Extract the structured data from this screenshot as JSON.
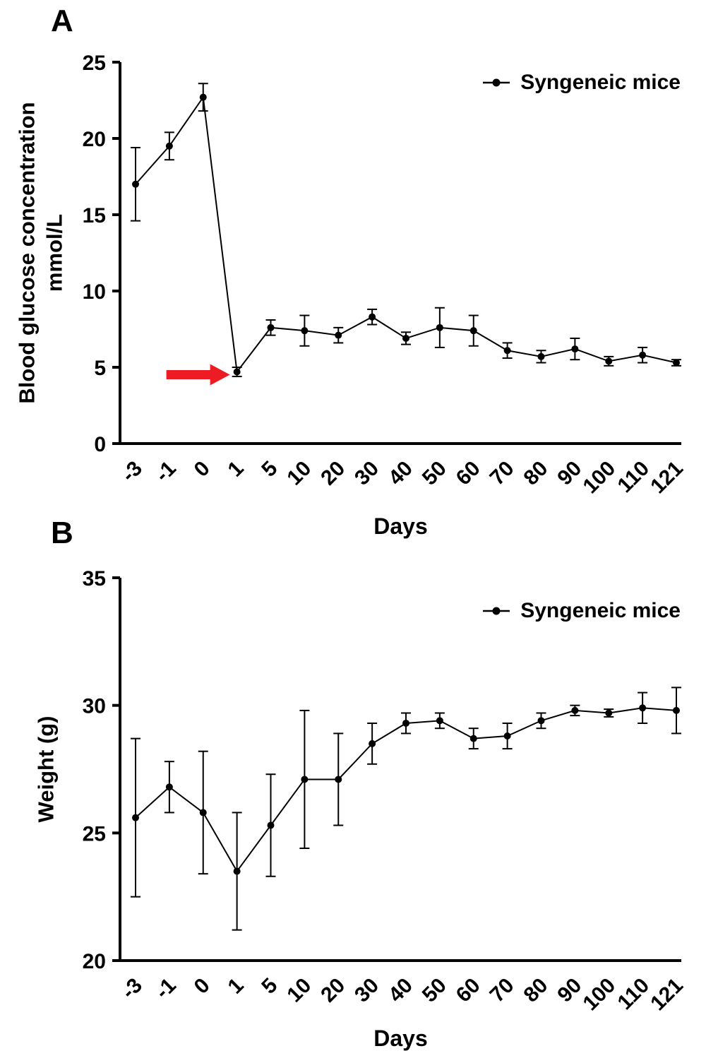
{
  "figure": {
    "panels": [
      {
        "label": "A"
      },
      {
        "label": "B"
      }
    ]
  },
  "chart_data": [
    {
      "type": "line",
      "panel": "A",
      "xlabel": "Days",
      "ylabel_lines": [
        "Blood glucose concentration",
        "mmol/L"
      ],
      "legend": [
        "Syngeneic mice"
      ],
      "legend_position": "top-right",
      "grid": false,
      "categories": [
        "-3",
        "-1",
        "0",
        "1",
        "5",
        "10",
        "20",
        "30",
        "40",
        "50",
        "60",
        "70",
        "80",
        "90",
        "100",
        "110",
        "121"
      ],
      "values": [
        17.0,
        19.5,
        22.7,
        4.7,
        7.6,
        7.4,
        7.1,
        8.3,
        6.9,
        7.6,
        7.4,
        6.1,
        5.7,
        6.2,
        5.4,
        5.8,
        5.3
      ],
      "errors": [
        2.4,
        0.9,
        0.9,
        0.3,
        0.5,
        1.0,
        0.5,
        0.5,
        0.4,
        1.3,
        1.0,
        0.5,
        0.4,
        0.7,
        0.3,
        0.5,
        0.2
      ],
      "ylim": [
        0,
        25
      ],
      "yticks": [
        0,
        5,
        10,
        15,
        20,
        25
      ],
      "series_color": "#000000",
      "annotation": {
        "shape": "arrow-right",
        "color": "#ed1c24",
        "points_to_category": "1"
      }
    },
    {
      "type": "line",
      "panel": "B",
      "xlabel": "Days",
      "ylabel_lines": [
        "Weight (g)"
      ],
      "legend": [
        "Syngeneic mice"
      ],
      "legend_position": "top-right",
      "grid": false,
      "categories": [
        "-3",
        "-1",
        "0",
        "1",
        "5",
        "10",
        "20",
        "30",
        "40",
        "50",
        "60",
        "70",
        "80",
        "90",
        "100",
        "110",
        "121"
      ],
      "values": [
        25.6,
        26.8,
        25.8,
        23.5,
        25.3,
        27.1,
        27.1,
        28.5,
        29.3,
        29.4,
        28.7,
        28.8,
        29.4,
        29.8,
        29.7,
        29.9,
        29.8
      ],
      "errors": [
        3.1,
        1.0,
        2.4,
        2.3,
        2.0,
        2.7,
        1.8,
        0.8,
        0.4,
        0.3,
        0.4,
        0.5,
        0.3,
        0.2,
        0.15,
        0.6,
        0.9
      ],
      "ylim": [
        20,
        35
      ],
      "yticks": [
        20,
        25,
        30,
        35
      ],
      "series_color": "#000000",
      "annotation": null
    }
  ]
}
